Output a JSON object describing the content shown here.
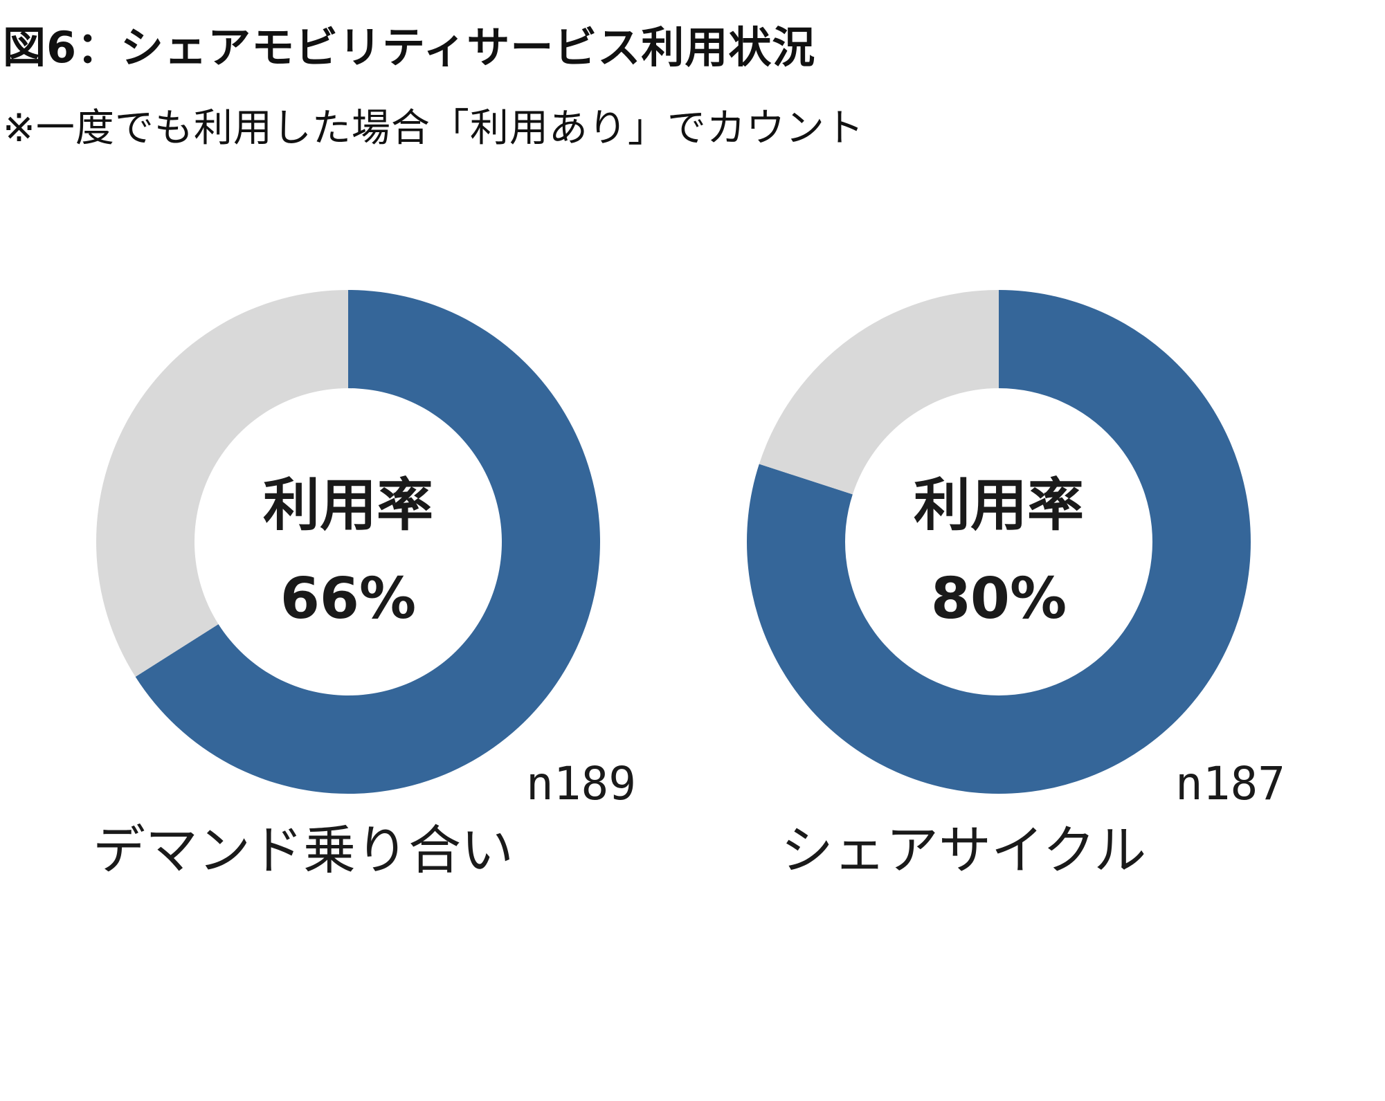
{
  "title": "図6：シェアモビリティサービス利用状況",
  "subtitle": "※一度でも利用した場合「利用あり」でカウント",
  "colors": {
    "used": "#356699",
    "not_used": "#d9d9d9"
  },
  "chart_data": [
    {
      "type": "pie",
      "category": "デマンド乗り合い",
      "center_title": "利用率",
      "value_label": "66%",
      "sample_label": "n189",
      "slices": [
        {
          "value": 66
        },
        {
          "value": 34
        }
      ]
    },
    {
      "type": "pie",
      "category": "シェアサイクル",
      "center_title": "利用率",
      "value_label": "80%",
      "sample_label": "n187",
      "slices": [
        {
          "value": 80
        },
        {
          "value": 20
        }
      ]
    }
  ]
}
